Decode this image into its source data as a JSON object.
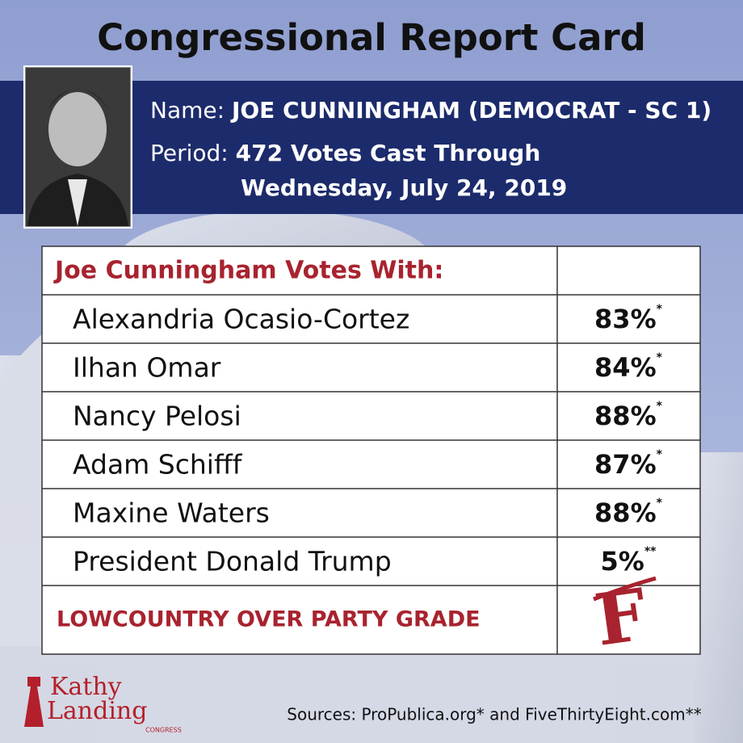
{
  "header": {
    "title": "Congressional Report Card",
    "name_label": "Name:",
    "name": "JOE CUNNINGHAM (DEMOCRAT - SC 1)",
    "period_label": "Period:",
    "period_lines": [
      "472 Votes Cast Through",
      "Wednesday, July 24, 2019"
    ]
  },
  "table": {
    "heading": "Joe Cunningham Votes With:",
    "rows": [
      {
        "name": "Alexandria Ocasio-Cortez",
        "value": "83%",
        "note": "*"
      },
      {
        "name": "Ilhan Omar",
        "value": "84%",
        "note": "*"
      },
      {
        "name": "Nancy Pelosi",
        "value": "88%",
        "note": "*"
      },
      {
        "name": "Adam Schifff",
        "value": "87%",
        "note": "*"
      },
      {
        "name": "Maxine Waters",
        "value": "88%",
        "note": "*"
      },
      {
        "name": "President Donald Trump",
        "value": "5%",
        "note": "**"
      }
    ],
    "grade_label": "LOWCOUNTRY OVER PARTY GRADE",
    "grade": "F"
  },
  "footer": {
    "sources": "Sources: ProPublica.org* and FiveThirtyEight.com**",
    "logo": [
      "Kathy",
      "Landing",
      "CONGRESS"
    ]
  }
}
